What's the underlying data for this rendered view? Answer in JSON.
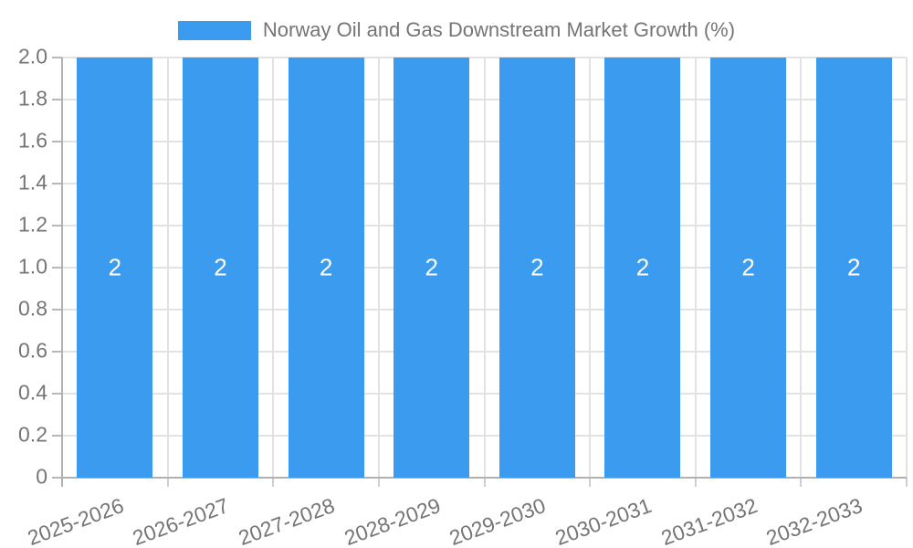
{
  "chart_data": {
    "type": "bar",
    "title": "Norway Oil and Gas Downstream Market Growth (%)",
    "categories": [
      "2025-2026",
      "2026-2027",
      "2027-2028",
      "2028-2029",
      "2029-2030",
      "2030-2031",
      "2031-2032",
      "2032-2033"
    ],
    "values": [
      2,
      2,
      2,
      2,
      2,
      2,
      2,
      2
    ],
    "bar_value_labels": [
      "2",
      "2",
      "2",
      "2",
      "2",
      "2",
      "2",
      "2"
    ],
    "xlabel": "",
    "ylabel": "",
    "ylim": [
      0,
      2
    ],
    "ytick_step": 0.2,
    "ytick_labels": [
      "2.0",
      "1.8",
      "1.6",
      "1.4",
      "1.2",
      "1.0",
      "0.8",
      "0.6",
      "0.4",
      "0.2",
      "0"
    ],
    "x_label_rotation_deg": -20,
    "grid": true,
    "legend": {
      "position": "top",
      "label": "Norway Oil and Gas Downstream Market Growth (%)"
    }
  },
  "colors": {
    "bar": "#3b9bee",
    "bar_value_label": "#ffffff",
    "gridline": "#e2e2e2",
    "axis_line": "#b2b2b2",
    "tick_mark_y": "#b8b8b8",
    "tick_mark_x": "#cfcfcf",
    "tick_label": "#757575",
    "legend_text": "#757575"
  }
}
